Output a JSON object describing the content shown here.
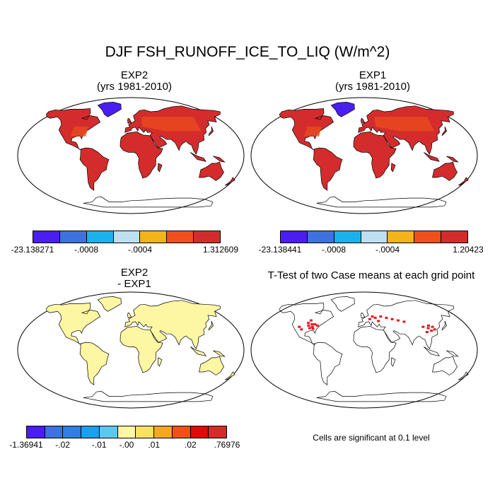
{
  "title": "DJF FSH_RUNOFF_ICE_TO_LIQ (W/m^2)",
  "panels": [
    {
      "id": "exp2",
      "title_line1": "EXP2",
      "title_line2": "(yrs 1981-2010)",
      "land_color": "#d42c2c",
      "ice_color": "#4a1ef0",
      "hotspot_color": "#ea4a1f",
      "colorbar": {
        "colors": [
          "#4a1ef0",
          "#3e72e0",
          "#1ab2ee",
          "#bce0f0",
          "#f5b31a",
          "#f05019",
          "#d42c2c"
        ],
        "labels": [
          "-23.138271",
          "-.0008",
          "-.0004",
          "1.312609"
        ]
      }
    },
    {
      "id": "exp1",
      "title_line1": "EXP1",
      "title_line2": "(yrs 1981-2010)",
      "land_color": "#d42c2c",
      "ice_color": "#4a1ef0",
      "hotspot_color": "#ea4a1f",
      "colorbar": {
        "colors": [
          "#4a1ef0",
          "#3e72e0",
          "#1ab2ee",
          "#bce0f0",
          "#f5b31a",
          "#f05019",
          "#d42c2c"
        ],
        "labels": [
          "-23.138441",
          "-.0008",
          "-.0004",
          "1.20423"
        ]
      }
    },
    {
      "id": "diff",
      "title_line1": "EXP2",
      "title_line2": "- EXP1",
      "land_color": "#fdf6a2",
      "colorbar": {
        "colors": [
          "#4a1ef0",
          "#3e72e0",
          "#2d7fe0",
          "#1aa0ee",
          "#5cc8f2",
          "#fdf6a2",
          "#f8e060",
          "#f5a623",
          "#f05019",
          "#e00a0a",
          "#d42c2c"
        ],
        "labels": [
          "-1.36941",
          "-.02",
          "-.01",
          "-.00",
          ".01",
          ".02",
          ".76976"
        ]
      }
    },
    {
      "id": "ttest",
      "title_line1": "T-Test of two Case means at each grid point",
      "note": "Cells are significant at 0.1 level",
      "sig_color": "#e8141e"
    }
  ]
}
